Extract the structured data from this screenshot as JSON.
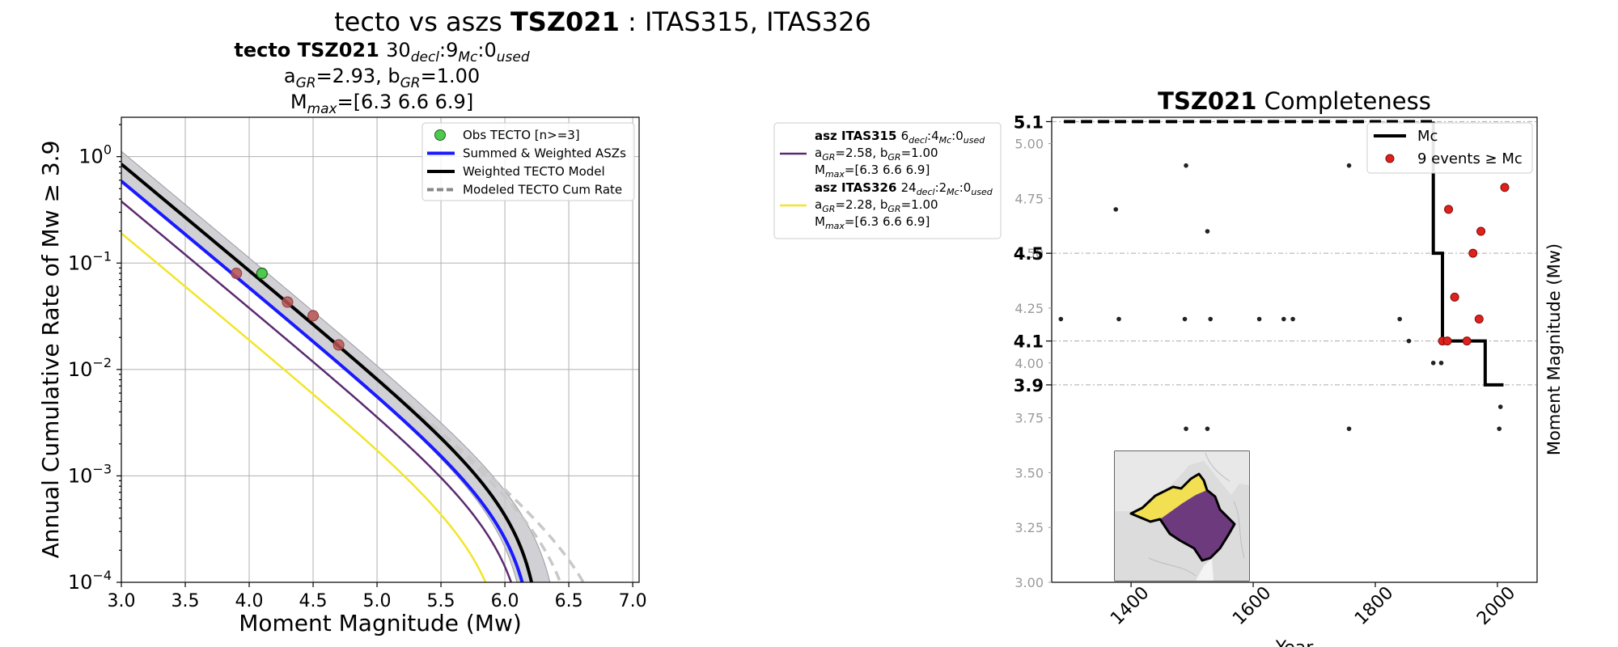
{
  "figure_title": {
    "prefix": "tecto vs aszs ",
    "zone": "TSZ021",
    "suffix": " : ITAS315, ITAS326"
  },
  "chart_data": [
    {
      "type": "line",
      "title_lines": {
        "zone_label": "tecto TSZ021",
        "counts": [
          {
            "num": "30",
            "sub": "decl"
          },
          {
            "num": "9",
            "sub": "Mc"
          },
          {
            "num": "0",
            "sub": "used"
          }
        ],
        "line2": [
          {
            "t": "a"
          },
          {
            "sub": "GR"
          },
          {
            "t": "=2.93,  b"
          },
          {
            "sub": "GR"
          },
          {
            "t": "=1.00"
          }
        ],
        "line3": [
          {
            "t": "M"
          },
          {
            "sub": "max"
          },
          {
            "t": "=[6.3 6.6 6.9]"
          }
        ]
      },
      "xlabel": "Moment Magnitude (Mw)",
      "ylabel": "Annual Cumulative Rate of Mw  ≥  3.9",
      "xlim": [
        3.0,
        7.05
      ],
      "ylim_log10": [
        -4,
        0.37
      ],
      "yscale": "log",
      "grid": true,
      "x_ticks": [
        {
          "v": 3.0,
          "label": "3.0"
        },
        {
          "v": 3.5,
          "label": "3.5"
        },
        {
          "v": 4.0,
          "label": "4.0"
        },
        {
          "v": 4.5,
          "label": "4.5"
        },
        {
          "v": 5.0,
          "label": "5.0"
        },
        {
          "v": 5.5,
          "label": "5.5"
        },
        {
          "v": 6.0,
          "label": "6.0"
        },
        {
          "v": 6.5,
          "label": "6.5"
        },
        {
          "v": 7.0,
          "label": "7.0"
        }
      ],
      "y_ticks": [
        {
          "exp": 0,
          "base": "10",
          "sup": "0"
        },
        {
          "exp": -1,
          "base": "10",
          "sup": "−1"
        },
        {
          "exp": -2,
          "base": "10",
          "sup": "−2"
        },
        {
          "exp": -3,
          "base": "10",
          "sup": "−3"
        },
        {
          "exp": -4,
          "base": "10",
          "sup": "−4"
        }
      ],
      "legend": {
        "placement": "top-right",
        "entries": [
          {
            "label": "Obs TECTO [n>=3]",
            "kind": "marker",
            "color": "#4ec94e"
          },
          {
            "label": "Summed & Weighted ASZs",
            "kind": "line",
            "color": "#1a1aff"
          },
          {
            "label": "Weighted TECTO Model",
            "kind": "line",
            "color": "#000000"
          },
          {
            "label": "Modeled TECTO Cum Rate",
            "kind": "dashed",
            "color": "#888888"
          }
        ]
      },
      "series": [
        {
          "name": "Weighted TECTO Model",
          "color": "#000000",
          "a": 2.93,
          "b": 1.0,
          "mmax": 6.3,
          "label_shown": true
        },
        {
          "name": "Summed & Weighted ASZs",
          "color": "#1a1aff",
          "a": 2.77,
          "b": 1.0,
          "mmax": 6.25,
          "label_shown": true
        },
        {
          "name": "asz ITAS315",
          "color": "#5b2a6e",
          "a": 2.58,
          "b": 1.0,
          "mmax": 6.2,
          "label_shown": true
        },
        {
          "name": "asz ITAS326",
          "color": "#f2e52a",
          "a": 2.28,
          "b": 1.0,
          "mmax": 6.05,
          "label_shown": true
        }
      ],
      "model_band": {
        "a_low": 2.76,
        "a_high": 3.05,
        "mmax_low": 6.2,
        "mmax_high": 6.45,
        "color": "#c9c9ce"
      },
      "modeled_dashed": [
        {
          "a": 2.93,
          "mmax": 6.6,
          "color": "#c8c8c8"
        },
        {
          "a": 2.93,
          "mmax": 6.9,
          "color": "#c8c8c8"
        }
      ],
      "observed_green": [
        {
          "x": 4.1,
          "y": 0.08
        }
      ],
      "observed_red": [
        {
          "x": 3.9,
          "y": 0.08
        },
        {
          "x": 4.3,
          "y": 0.043
        },
        {
          "x": 4.5,
          "y": 0.032
        },
        {
          "x": 4.7,
          "y": 0.017
        }
      ]
    },
    {
      "type": "scatter",
      "title_bold": "TSZ021",
      "title_rest": " Completeness",
      "xlabel": "Year",
      "ylabel": "Moment Magnitude (Mw)",
      "xlim": [
        1270,
        2065
      ],
      "ylim": [
        3.0,
        5.12
      ],
      "x_ticks": [
        {
          "v": 1400,
          "label": "1400"
        },
        {
          "v": 1600,
          "label": "1600"
        },
        {
          "v": 1800,
          "label": "1800"
        },
        {
          "v": 2000,
          "label": "2000"
        }
      ],
      "y_ticks_minor": [
        {
          "v": 3.0,
          "label": "3.00"
        },
        {
          "v": 3.25,
          "label": "3.25"
        },
        {
          "v": 3.5,
          "label": "3.50"
        },
        {
          "v": 3.75,
          "label": "3.75"
        },
        {
          "v": 4.0,
          "label": "4.00"
        },
        {
          "v": 4.25,
          "label": "4.25"
        },
        {
          "v": 4.5,
          "label": "4.50"
        },
        {
          "v": 4.75,
          "label": "4.75"
        },
        {
          "v": 5.0,
          "label": "5.00"
        }
      ],
      "y_ticks_major": [
        {
          "v": 3.9,
          "label": "3.9"
        },
        {
          "v": 4.1,
          "label": "4.1"
        },
        {
          "v": 4.5,
          "label": "4.5"
        },
        {
          "v": 5.1,
          "label": "5.1"
        }
      ],
      "legend": {
        "placement": "top-right",
        "entries": [
          {
            "label": "Mc",
            "kind": "line",
            "color": "#000000"
          },
          {
            "label": "9 events  ≥  Mc",
            "kind": "marker",
            "color": "#e0201b"
          }
        ]
      },
      "mc_step": [
        {
          "x": 1290,
          "y": 5.1
        },
        {
          "x": 1895,
          "y": 5.1
        },
        {
          "x": 1895,
          "y": 4.5
        },
        {
          "x": 1910,
          "y": 4.5
        },
        {
          "x": 1910,
          "y": 4.1
        },
        {
          "x": 1980,
          "y": 4.1
        },
        {
          "x": 1980,
          "y": 3.9
        },
        {
          "x": 2010,
          "y": 3.9
        }
      ],
      "mc_dashed_until": 1895,
      "events_below": [
        {
          "year": 1285,
          "mw": 4.2
        },
        {
          "year": 1375,
          "mw": 4.7
        },
        {
          "year": 1380,
          "mw": 4.2
        },
        {
          "year": 1490,
          "mw": 4.9
        },
        {
          "year": 1488,
          "mw": 4.2
        },
        {
          "year": 1490,
          "mw": 3.7
        },
        {
          "year": 1525,
          "mw": 4.6
        },
        {
          "year": 1530,
          "mw": 4.2
        },
        {
          "year": 1525,
          "mw": 3.7
        },
        {
          "year": 1610,
          "mw": 4.2
        },
        {
          "year": 1650,
          "mw": 4.2
        },
        {
          "year": 1665,
          "mw": 4.2
        },
        {
          "year": 1757,
          "mw": 4.9
        },
        {
          "year": 1757,
          "mw": 3.7
        },
        {
          "year": 1840,
          "mw": 4.2
        },
        {
          "year": 1855,
          "mw": 4.1
        },
        {
          "year": 1895,
          "mw": 4.0
        },
        {
          "year": 1908,
          "mw": 4.0
        },
        {
          "year": 2003,
          "mw": 3.7
        },
        {
          "year": 2005,
          "mw": 3.8
        }
      ],
      "events_above": [
        {
          "year": 1910,
          "mw": 4.1
        },
        {
          "year": 1918,
          "mw": 4.1
        },
        {
          "year": 1920,
          "mw": 4.7
        },
        {
          "year": 1930,
          "mw": 4.3
        },
        {
          "year": 1950,
          "mw": 4.1
        },
        {
          "year": 1960,
          "mw": 4.5
        },
        {
          "year": 1970,
          "mw": 4.2
        },
        {
          "year": 1973,
          "mw": 4.6
        },
        {
          "year": 2012,
          "mw": 4.8
        }
      ]
    }
  ],
  "asz_legend": [
    {
      "name": "asz ITAS315",
      "counts": [
        {
          "num": "6",
          "sub": "decl"
        },
        {
          "num": "4",
          "sub": "Mc"
        },
        {
          "num": "0",
          "sub": "used"
        }
      ],
      "line2": [
        {
          "t": "a"
        },
        {
          "sub": "GR"
        },
        {
          "t": "=2.58,  b"
        },
        {
          "sub": "GR"
        },
        {
          "t": "=1.00"
        }
      ],
      "line3": [
        {
          "t": "M"
        },
        {
          "sub": "max"
        },
        {
          "t": "=[6.3 6.6 6.9]"
        }
      ],
      "color": "#5b2a6e"
    },
    {
      "name": "asz ITAS326",
      "counts": [
        {
          "num": "24",
          "sub": "decl"
        },
        {
          "num": "2",
          "sub": "Mc"
        },
        {
          "num": "0",
          "sub": "used"
        }
      ],
      "line2": [
        {
          "t": "a"
        },
        {
          "sub": "GR"
        },
        {
          "t": "=2.28,  b"
        },
        {
          "sub": "GR"
        },
        {
          "t": "=1.00"
        }
      ],
      "line3": [
        {
          "t": "M"
        },
        {
          "sub": "max"
        },
        {
          "t": "=[6.3 6.6 6.9]"
        }
      ],
      "color": "#f2e52a"
    }
  ],
  "inset_map": {
    "land_color": "#dcdcdc",
    "zone_colors": [
      "#f2e052",
      "#6e3a7e"
    ]
  }
}
